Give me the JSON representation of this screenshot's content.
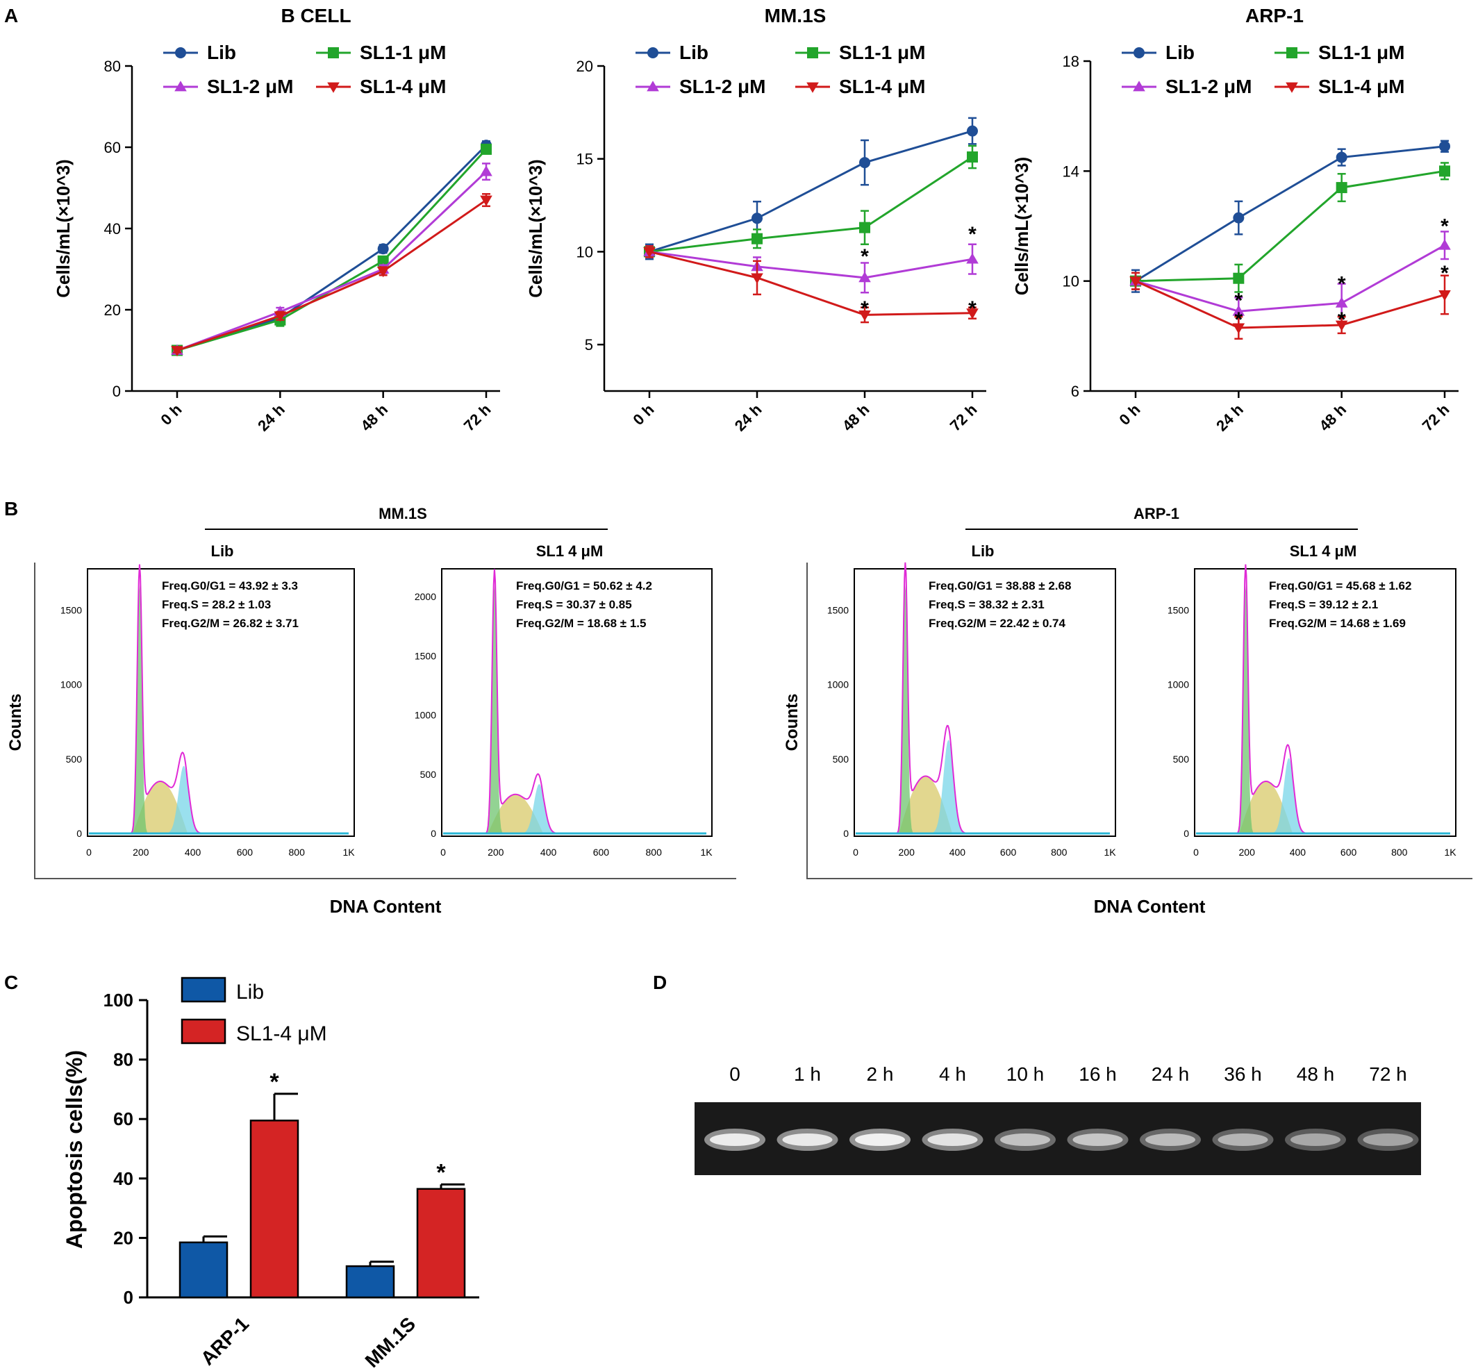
{
  "panel_letters": [
    "A",
    "B",
    "C",
    "D"
  ],
  "colors": {
    "lib": "#1f4e96",
    "sl1_1": "#22a52b",
    "sl1_2": "#b13bd6",
    "sl1_4": "#d11a1a",
    "bar_lib": "#0f58a6",
    "bar_sl": "#d42424",
    "g0g1": "#6fc46f",
    "s_phase": "#d8c96a",
    "g2m": "#78d6e8",
    "outline": "#e02ad6"
  },
  "panel_a": {
    "series_labels": [
      "Lib",
      "SL1-1 μM",
      "SL1-2 μM",
      "SL1-4 μM"
    ],
    "ylabel": "Cells/mL(×10^3)",
    "categories": [
      "0 h",
      "24 h",
      "48 h",
      "72 h"
    ]
  },
  "panel_b": {
    "groups": [
      {
        "title": "MM.1S",
        "subplots": [
          {
            "label": "Lib",
            "ticks": [
              "0",
              "500",
              "1000",
              "1500"
            ],
            "stats": [
              "Freq.G0/G1 = 43.92 ± 3.3",
              "Freq.S = 28.2 ± 1.03",
              "Freq.G2/M = 26.82 ± 3.71"
            ]
          },
          {
            "label": "SL1 4 μM",
            "ticks": [
              "0",
              "500",
              "1000",
              "1500",
              "2000"
            ],
            "stats": [
              "Freq.G0/G1 = 50.62 ± 4.2",
              "Freq.S = 30.37 ± 0.85",
              "Freq.G2/M = 18.68 ± 1.5"
            ]
          }
        ]
      },
      {
        "title": "ARP-1",
        "subplots": [
          {
            "label": "Lib",
            "ticks": [
              "0",
              "500",
              "1000",
              "1500"
            ],
            "stats": [
              "Freq.G0/G1 = 38.88 ± 2.68",
              "Freq.S = 38.32 ± 2.31",
              "Freq.G2/M = 22.42 ± 0.74"
            ]
          },
          {
            "label": "SL1 4 μM",
            "ticks": [
              "0",
              "500",
              "1000",
              "1500"
            ],
            "stats": [
              "Freq.G0/G1 = 45.68 ± 1.62",
              "Freq.S = 39.12 ± 2.1",
              "Freq.G2/M = 14.68 ± 1.69"
            ]
          }
        ]
      }
    ],
    "ylabel": "Counts",
    "xlabel": "DNA Content",
    "xticks": [
      "0",
      "200",
      "400",
      "600",
      "800",
      "1K"
    ]
  },
  "panel_d": {
    "lanes": [
      "0",
      "1 h",
      "2 h",
      "4 h",
      "10 h",
      "16 h",
      "24 h",
      "36 h",
      "48 h",
      "72 h"
    ],
    "intensity": [
      0.92,
      0.9,
      0.97,
      0.86,
      0.66,
      0.68,
      0.62,
      0.58,
      0.52,
      0.5
    ]
  },
  "chart_data": [
    {
      "type": "line",
      "title": "B CELL",
      "xlabel": "",
      "ylabel": "Cells/mL(×10^3)",
      "ylim": [
        0,
        80
      ],
      "yticks": [
        0,
        20,
        40,
        60,
        80
      ],
      "categories": [
        "0 h",
        "24 h",
        "48 h",
        "72 h"
      ],
      "series": [
        {
          "name": "Lib",
          "values": [
            10,
            18,
            35,
            60.5
          ],
          "err": [
            0.5,
            1,
            1,
            1
          ],
          "marker": "circle",
          "color": "#1f4e96"
        },
        {
          "name": "SL1-1 μM",
          "values": [
            10,
            17.5,
            32,
            59.5
          ],
          "err": [
            0.5,
            1.5,
            1,
            1
          ],
          "marker": "square",
          "color": "#22a52b"
        },
        {
          "name": "SL1-2 μM",
          "values": [
            10,
            19.5,
            30,
            54
          ],
          "err": [
            0.5,
            1,
            1,
            2
          ],
          "marker": "triangle",
          "color": "#b13bd6"
        },
        {
          "name": "SL1-4 μM",
          "values": [
            10,
            18.5,
            29.5,
            47
          ],
          "err": [
            0.5,
            1,
            1,
            1.5
          ],
          "marker": "triangle-down",
          "color": "#d11a1a"
        }
      ],
      "significance": []
    },
    {
      "type": "line",
      "title": "MM.1S",
      "xlabel": "",
      "ylabel": "Cells/mL(×10^3)",
      "ylim": [
        2.5,
        20
      ],
      "yticks": [
        5,
        10,
        15,
        20
      ],
      "categories": [
        "0 h",
        "24 h",
        "48 h",
        "72 h"
      ],
      "series": [
        {
          "name": "Lib",
          "values": [
            10,
            11.8,
            14.8,
            16.5
          ],
          "err": [
            0.4,
            0.9,
            1.2,
            0.7
          ],
          "marker": "circle",
          "color": "#1f4e96"
        },
        {
          "name": "SL1-1 μM",
          "values": [
            10,
            10.7,
            11.3,
            15.1
          ],
          "err": [
            0.3,
            0.5,
            0.9,
            0.6
          ],
          "marker": "square",
          "color": "#22a52b"
        },
        {
          "name": "SL1-2 μM",
          "values": [
            10,
            9.2,
            8.6,
            9.6
          ],
          "err": [
            0.3,
            0.5,
            0.8,
            0.8
          ],
          "marker": "triangle",
          "color": "#b13bd6"
        },
        {
          "name": "SL1-4 μM",
          "values": [
            10,
            8.6,
            6.6,
            6.7
          ],
          "err": [
            0.3,
            0.9,
            0.4,
            0.3
          ],
          "marker": "triangle-down",
          "color": "#d11a1a"
        }
      ],
      "significance": [
        {
          "x": 2,
          "y": 9.9,
          "text": "*"
        },
        {
          "x": 3,
          "y": 11.1,
          "text": "*"
        },
        {
          "x": 2,
          "y": 7.1,
          "text": "*"
        },
        {
          "x": 3,
          "y": 7.1,
          "text": "*"
        }
      ]
    },
    {
      "type": "line",
      "title": "ARP-1",
      "xlabel": "",
      "ylabel": "Cells/mL(×10^3)",
      "ylim": [
        6,
        18
      ],
      "yticks": [
        6,
        10,
        14,
        18
      ],
      "categories": [
        "0 h",
        "24 h",
        "48 h",
        "72 h"
      ],
      "series": [
        {
          "name": "Lib",
          "values": [
            10,
            12.3,
            14.5,
            14.9
          ],
          "err": [
            0.4,
            0.6,
            0.3,
            0.2
          ],
          "marker": "circle",
          "color": "#1f4e96"
        },
        {
          "name": "SL1-1 μM",
          "values": [
            10,
            10.1,
            13.4,
            14
          ],
          "err": [
            0.3,
            0.5,
            0.5,
            0.3
          ],
          "marker": "square",
          "color": "#22a52b"
        },
        {
          "name": "SL1-2 μM",
          "values": [
            10,
            8.9,
            9.2,
            11.3
          ],
          "err": [
            0.3,
            0.5,
            0.7,
            0.5
          ],
          "marker": "triangle",
          "color": "#b13bd6"
        },
        {
          "name": "SL1-4 μM",
          "values": [
            10,
            8.3,
            8.4,
            9.5
          ],
          "err": [
            0.3,
            0.4,
            0.3,
            0.7
          ],
          "marker": "triangle-down",
          "color": "#d11a1a"
        }
      ],
      "significance": [
        {
          "x": 1,
          "y": 9.4,
          "text": "*"
        },
        {
          "x": 2,
          "y": 10.0,
          "text": "*"
        },
        {
          "x": 3,
          "y": 12.1,
          "text": "*"
        },
        {
          "x": 1,
          "y": 8.7,
          "text": "*"
        },
        {
          "x": 2,
          "y": 8.7,
          "text": "*"
        },
        {
          "x": 3,
          "y": 10.4,
          "text": "*"
        }
      ]
    },
    {
      "type": "bar",
      "title": "",
      "xlabel": "",
      "ylabel": "Apoptosis cells(%)",
      "ylim": [
        0,
        100
      ],
      "yticks": [
        0,
        20,
        40,
        60,
        80,
        100
      ],
      "categories": [
        "ARP-1",
        "MM.1S"
      ],
      "series": [
        {
          "name": "Lib",
          "values": [
            18.5,
            10.5
          ],
          "err": [
            2,
            1.5
          ],
          "color": "#0f58a6"
        },
        {
          "name": "SL1-4 μM",
          "values": [
            59.5,
            36.5
          ],
          "err": [
            9,
            1.5
          ],
          "color": "#d42424"
        }
      ],
      "significance": [
        {
          "category": 0,
          "series": 1,
          "text": "*"
        },
        {
          "category": 1,
          "series": 1,
          "text": "*"
        }
      ]
    }
  ]
}
